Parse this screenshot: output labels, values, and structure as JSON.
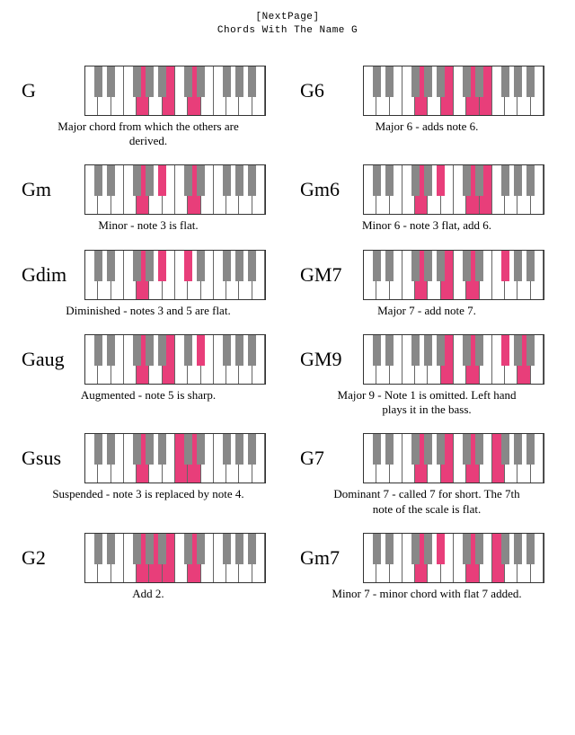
{
  "header": {
    "line1": "[NextPage]",
    "line2": "Chords With The Name G"
  },
  "keyboard": {
    "white_count": 14,
    "kb_width": 200,
    "kb_height": 54,
    "white_width": 14.2857,
    "black_width": 9,
    "black_height": 34,
    "black_offsets_pattern": [
      0,
      1,
      3,
      4,
      5,
      7,
      8,
      10,
      11,
      12
    ],
    "white_color": "#ffffff",
    "black_color": "#888888",
    "highlight_color": "#e83e7a",
    "border_color": "#444444"
  },
  "white_notes": [
    "C",
    "D",
    "E",
    "F",
    "G",
    "A",
    "B",
    "C2",
    "D2",
    "E2",
    "F2",
    "G2",
    "A2",
    "B2"
  ],
  "black_notes": [
    "Cs",
    "Ds",
    "Fs",
    "Gs",
    "As",
    "Cs2",
    "Ds2",
    "Fs2",
    "Gs2",
    "As2"
  ],
  "chords": [
    {
      "name": "G",
      "caption": "Major chord from which the others are derived.",
      "hl_white": [
        "G",
        "B",
        "D2"
      ],
      "hl_black": []
    },
    {
      "name": "G6",
      "caption": "Major 6 - adds note 6.",
      "hl_white": [
        "G",
        "B",
        "D2",
        "E2"
      ],
      "hl_black": []
    },
    {
      "name": "Gm",
      "caption": "Minor - note 3 is flat.",
      "hl_white": [
        "G",
        "D2"
      ],
      "hl_black": [
        "As"
      ]
    },
    {
      "name": "Gm6",
      "caption": "Minor 6 - note 3 flat, add 6.",
      "hl_white": [
        "G",
        "D2",
        "E2"
      ],
      "hl_black": [
        "As"
      ]
    },
    {
      "name": "Gdim",
      "caption": "Diminished - notes 3 and 5 are flat.",
      "hl_white": [
        "G"
      ],
      "hl_black": [
        "As",
        "Cs2"
      ]
    },
    {
      "name": "GM7",
      "caption": "Major 7 - add note 7.",
      "hl_white": [
        "G",
        "B",
        "D2"
      ],
      "hl_black": [
        "Fs2"
      ]
    },
    {
      "name": "Gaug",
      "caption": "Augmented - note 5 is sharp.",
      "hl_white": [
        "G",
        "B"
      ],
      "hl_black": [
        "Ds2"
      ]
    },
    {
      "name": "GM9",
      "caption": "Major 9 - Note 1 is omitted. Left hand plays it in the bass.",
      "hl_white": [
        "B",
        "D2",
        "A2"
      ],
      "hl_black": [
        "Fs2"
      ]
    },
    {
      "name": "Gsus",
      "caption": "Suspended - note 3 is replaced by note 4.",
      "hl_white": [
        "G",
        "C2",
        "D2"
      ],
      "hl_black": []
    },
    {
      "name": "G7",
      "caption": "Dominant 7 - called 7 for short. The 7th note of the scale is flat.",
      "hl_white": [
        "G",
        "B",
        "D2",
        "F2"
      ],
      "hl_black": []
    },
    {
      "name": "G2",
      "caption": "Add 2.",
      "hl_white": [
        "G",
        "A",
        "B",
        "D2"
      ],
      "hl_black": []
    },
    {
      "name": "Gm7",
      "caption": "Minor 7 - minor chord with flat 7 added.",
      "hl_white": [
        "G",
        "D2",
        "F2"
      ],
      "hl_black": [
        "As"
      ]
    }
  ]
}
